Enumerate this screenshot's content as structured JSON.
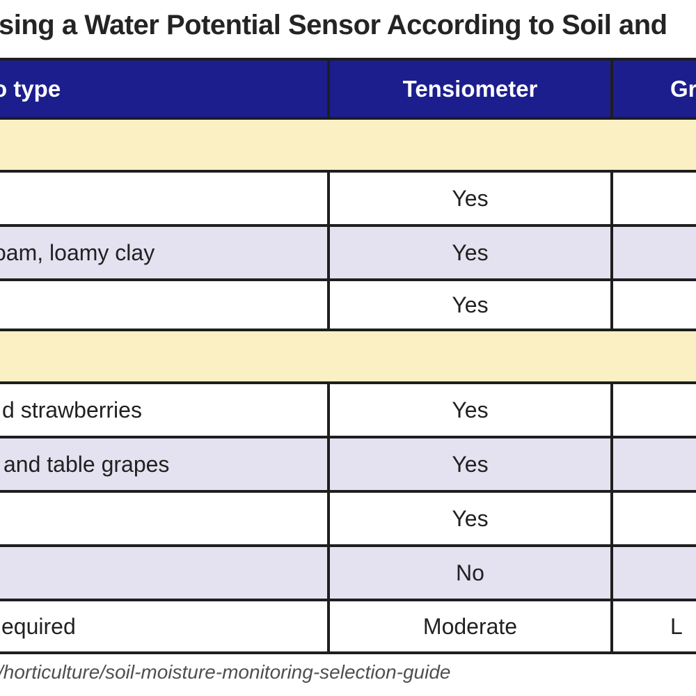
{
  "title": "sing a Water Potential Sensor According to Soil and",
  "table": {
    "header": {
      "crop_type": "o type",
      "tensiometer": "Tensiometer",
      "granular": "Gra"
    },
    "rows": [
      {
        "kind": "section",
        "label": ""
      },
      {
        "kind": "data",
        "crop": "",
        "tensiometer": "Yes",
        "granular": ""
      },
      {
        "kind": "data",
        "crop": "oam, loamy clay",
        "tensiometer": "Yes",
        "granular": ""
      },
      {
        "kind": "data",
        "crop": "",
        "tensiometer": "Yes",
        "granular": ""
      },
      {
        "kind": "section",
        "label": ""
      },
      {
        "kind": "data",
        "crop": "d strawberries",
        "tensiometer": "Yes",
        "granular": ""
      },
      {
        "kind": "data",
        "crop": "and table grapes",
        "tensiometer": "Yes",
        "granular": ""
      },
      {
        "kind": "data",
        "crop": "",
        "tensiometer": "Yes",
        "granular": ""
      },
      {
        "kind": "data",
        "crop": "",
        "tensiometer": "No",
        "granular": ""
      },
      {
        "kind": "data",
        "crop": "equired",
        "tensiometer": "Moderate",
        "granular": "L"
      }
    ]
  },
  "footer": {
    "source_path": "/horticulture/soil-moisture-monitoring-selection-guide"
  },
  "colors": {
    "header_bg": "#1C1E8E",
    "header_text": "#FFFFFF",
    "section_band_bg": "#FBF0C4",
    "row_alt_bg": "#E4E1F0",
    "border": "#1E1E1E",
    "title_text": "#242424",
    "footer_text": "#4F4F4F"
  },
  "chart_data": {
    "type": "table",
    "title": "sing a Water Potential Sensor According to Soil and",
    "columns": [
      "o type",
      "Tensiometer",
      "Gra"
    ],
    "rows": [
      {
        "section": true,
        "cells": [
          "",
          "",
          ""
        ]
      },
      {
        "cells": [
          "",
          "Yes",
          ""
        ]
      },
      {
        "cells": [
          "oam, loamy clay",
          "Yes",
          ""
        ]
      },
      {
        "cells": [
          "",
          "Yes",
          ""
        ]
      },
      {
        "section": true,
        "cells": [
          "",
          "",
          ""
        ]
      },
      {
        "cells": [
          "d strawberries",
          "Yes",
          ""
        ]
      },
      {
        "cells": [
          "and table grapes",
          "Yes",
          ""
        ]
      },
      {
        "cells": [
          "",
          "Yes",
          ""
        ]
      },
      {
        "cells": [
          "",
          "No",
          ""
        ]
      },
      {
        "cells": [
          "equired",
          "Moderate",
          "L"
        ]
      }
    ],
    "source": "/horticulture/soil-moisture-monitoring-selection-guide",
    "layout": {
      "header_bg": "#1C1E8E",
      "section_rows_bg": "#FBF0C4",
      "zebra_bg": [
        "#FFFFFF",
        "#E4E1F0"
      ],
      "grid": true
    }
  }
}
